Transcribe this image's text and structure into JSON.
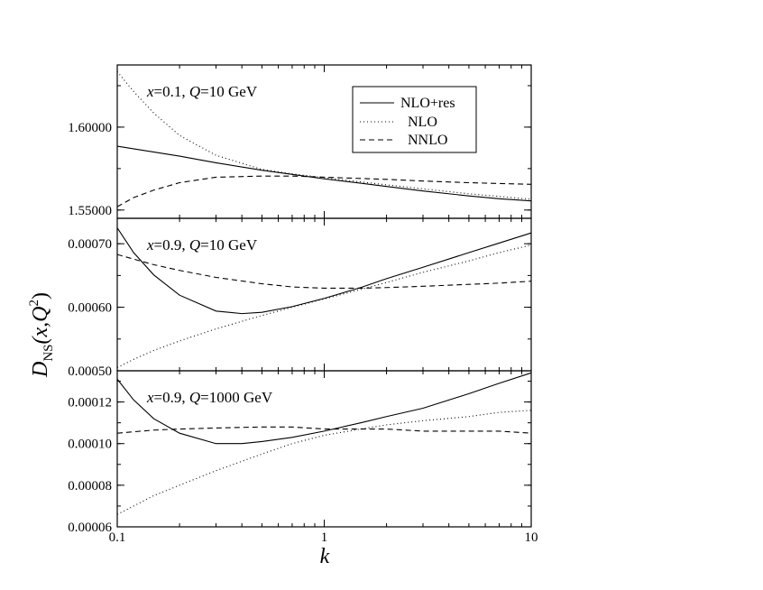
{
  "chart_data": {
    "type": "line",
    "x_axis": {
      "label": "k",
      "scale": "log",
      "range": [
        0.1,
        10
      ],
      "ticks": [
        0.1,
        1,
        10
      ],
      "tick_labels": [
        "0.1",
        "1",
        "10"
      ]
    },
    "y_axis_label": {
      "main": "D",
      "subscript": "NS",
      "arg_open": "(x,Q",
      "superscript": "2",
      "arg_close": ")"
    },
    "legend": {
      "placement": "top-right of top panel",
      "entries": [
        {
          "label": "NLO+res",
          "style": "solid"
        },
        {
          "label": "NLO",
          "style": "dotted"
        },
        {
          "label": "NNLO",
          "style": "dashed"
        }
      ]
    },
    "panels": [
      {
        "label": {
          "x_sym": "x",
          "x_val": "=0.1, ",
          "q_sym": "Q",
          "q_val": "=10 GeV"
        },
        "ylim": [
          1.545,
          1.6375
        ],
        "yticks": [
          1.55,
          1.6
        ],
        "ytick_labels": [
          "1.55000",
          "1.60000"
        ],
        "series": [
          {
            "name": "NLO+res",
            "style": "solid",
            "x": [
              0.1,
              0.2,
              0.3,
              0.5,
              0.7,
              1.0,
              1.5,
              2.0,
              3.0,
              5.0,
              7.0,
              10.0
            ],
            "y": [
              1.5885,
              1.5825,
              1.5785,
              1.574,
              1.5715,
              1.5688,
              1.5662,
              1.5642,
              1.5615,
              1.5585,
              1.5568,
              1.5555
            ]
          },
          {
            "name": "NLO",
            "style": "dotted",
            "x": [
              0.1,
              0.12,
              0.15,
              0.2,
              0.3,
              0.5,
              0.7,
              1.0,
              2.0,
              3.0,
              5.0,
              7.0,
              10.0
            ],
            "y": [
              1.6335,
              1.6215,
              1.6085,
              1.595,
              1.583,
              1.5745,
              1.5718,
              1.5695,
              1.5652,
              1.5628,
              1.5598,
              1.5582,
              1.5565
            ]
          },
          {
            "name": "NNLO",
            "style": "dashed",
            "x": [
              0.1,
              0.12,
              0.15,
              0.2,
              0.3,
              0.5,
              0.7,
              1.0,
              2.0,
              3.0,
              5.0,
              7.0,
              10.0
            ],
            "y": [
              1.552,
              1.5575,
              1.562,
              1.5665,
              1.5698,
              1.5705,
              1.5705,
              1.5698,
              1.5685,
              1.5675,
              1.5665,
              1.566,
              1.5655
            ]
          }
        ]
      },
      {
        "label": {
          "x_sym": "x",
          "x_val": "=0.9, ",
          "q_sym": "Q",
          "q_val": "=10 GeV"
        },
        "ylim": [
          0.0005,
          0.00074
        ],
        "yticks": [
          0.0005,
          0.0006,
          0.0007
        ],
        "ytick_labels": [
          "0.00050",
          "0.00060",
          "0.00070"
        ],
        "series": [
          {
            "name": "NLO+res",
            "style": "solid",
            "x": [
              0.1,
              0.12,
              0.15,
              0.2,
              0.3,
              0.4,
              0.5,
              0.7,
              1.0,
              1.5,
              2.0,
              3.0,
              5.0,
              7.0,
              10.0
            ],
            "y": [
              0.000725,
              0.000686,
              0.000651,
              0.000619,
              0.000594,
              0.00059,
              0.000592,
              0.000601,
              0.000614,
              0.000631,
              0.000645,
              0.000663,
              0.000686,
              0.000701,
              0.000717
            ]
          },
          {
            "name": "NLO",
            "style": "dotted",
            "x": [
              0.1,
              0.12,
              0.15,
              0.2,
              0.3,
              0.5,
              0.7,
              1.0,
              1.5,
              2.0,
              3.0,
              5.0,
              7.0,
              10.0
            ],
            "y": [
              0.000505,
              0.000518,
              0.000532,
              0.000547,
              0.000566,
              0.000587,
              0.0006,
              0.000613,
              0.000628,
              0.000639,
              0.000655,
              0.000673,
              0.000686,
              0.000698
            ]
          },
          {
            "name": "NNLO",
            "style": "dashed",
            "x": [
              0.1,
              0.15,
              0.2,
              0.3,
              0.5,
              0.7,
              1.0,
              1.5,
              2.0,
              3.0,
              5.0,
              7.0,
              10.0
            ],
            "y": [
              0.000683,
              0.000667,
              0.000658,
              0.000647,
              0.000637,
              0.000632,
              0.00063,
              0.00063,
              0.000631,
              0.000633,
              0.000636,
              0.000638,
              0.000641
            ]
          }
        ]
      },
      {
        "label": {
          "x_sym": "x",
          "x_val": "=0.9, ",
          "q_sym": "Q",
          "q_val": "=1000 GeV"
        },
        "ylim": [
          6e-05,
          0.000135
        ],
        "yticks": [
          6e-05,
          8e-05,
          0.0001,
          0.00012
        ],
        "ytick_labels": [
          "0.00006",
          "0.00008",
          "0.00010",
          "0.00012"
        ],
        "series": [
          {
            "name": "NLO+res",
            "style": "solid",
            "x": [
              0.1,
              0.12,
              0.15,
              0.2,
              0.3,
              0.4,
              0.5,
              0.7,
              1.0,
              1.5,
              2.0,
              3.0,
              5.0,
              7.0,
              10.0
            ],
            "y": [
              0.000131,
              0.000121,
              0.000112,
              0.000105,
              0.0001,
              0.0001,
              0.000101,
              0.000103,
              0.000106,
              0.00011,
              0.000113,
              0.000117,
              0.000124,
              0.000129,
              0.000134
            ]
          },
          {
            "name": "NLO",
            "style": "dotted",
            "x": [
              0.1,
              0.12,
              0.15,
              0.2,
              0.3,
              0.5,
              0.7,
              1.0,
              1.5,
              2.0,
              3.0,
              5.0,
              7.0,
              10.0
            ],
            "y": [
              6.6e-05,
              7e-05,
              7.5e-05,
              8e-05,
              8.7e-05,
              9.5e-05,
              0.0001,
              0.000104,
              0.000107,
              0.000109,
              0.000111,
              0.000113,
              0.000115,
              0.000116
            ]
          },
          {
            "name": "NNLO",
            "style": "dashed",
            "x": [
              0.1,
              0.15,
              0.2,
              0.3,
              0.5,
              0.7,
              1.0,
              2.0,
              3.0,
              5.0,
              7.0,
              10.0
            ],
            "y": [
              0.000105,
              0.0001065,
              0.000107,
              0.0001075,
              0.000108,
              0.000108,
              0.000107,
              0.000107,
              0.000106,
              0.000106,
              0.000106,
              0.000105
            ]
          }
        ]
      }
    ]
  }
}
